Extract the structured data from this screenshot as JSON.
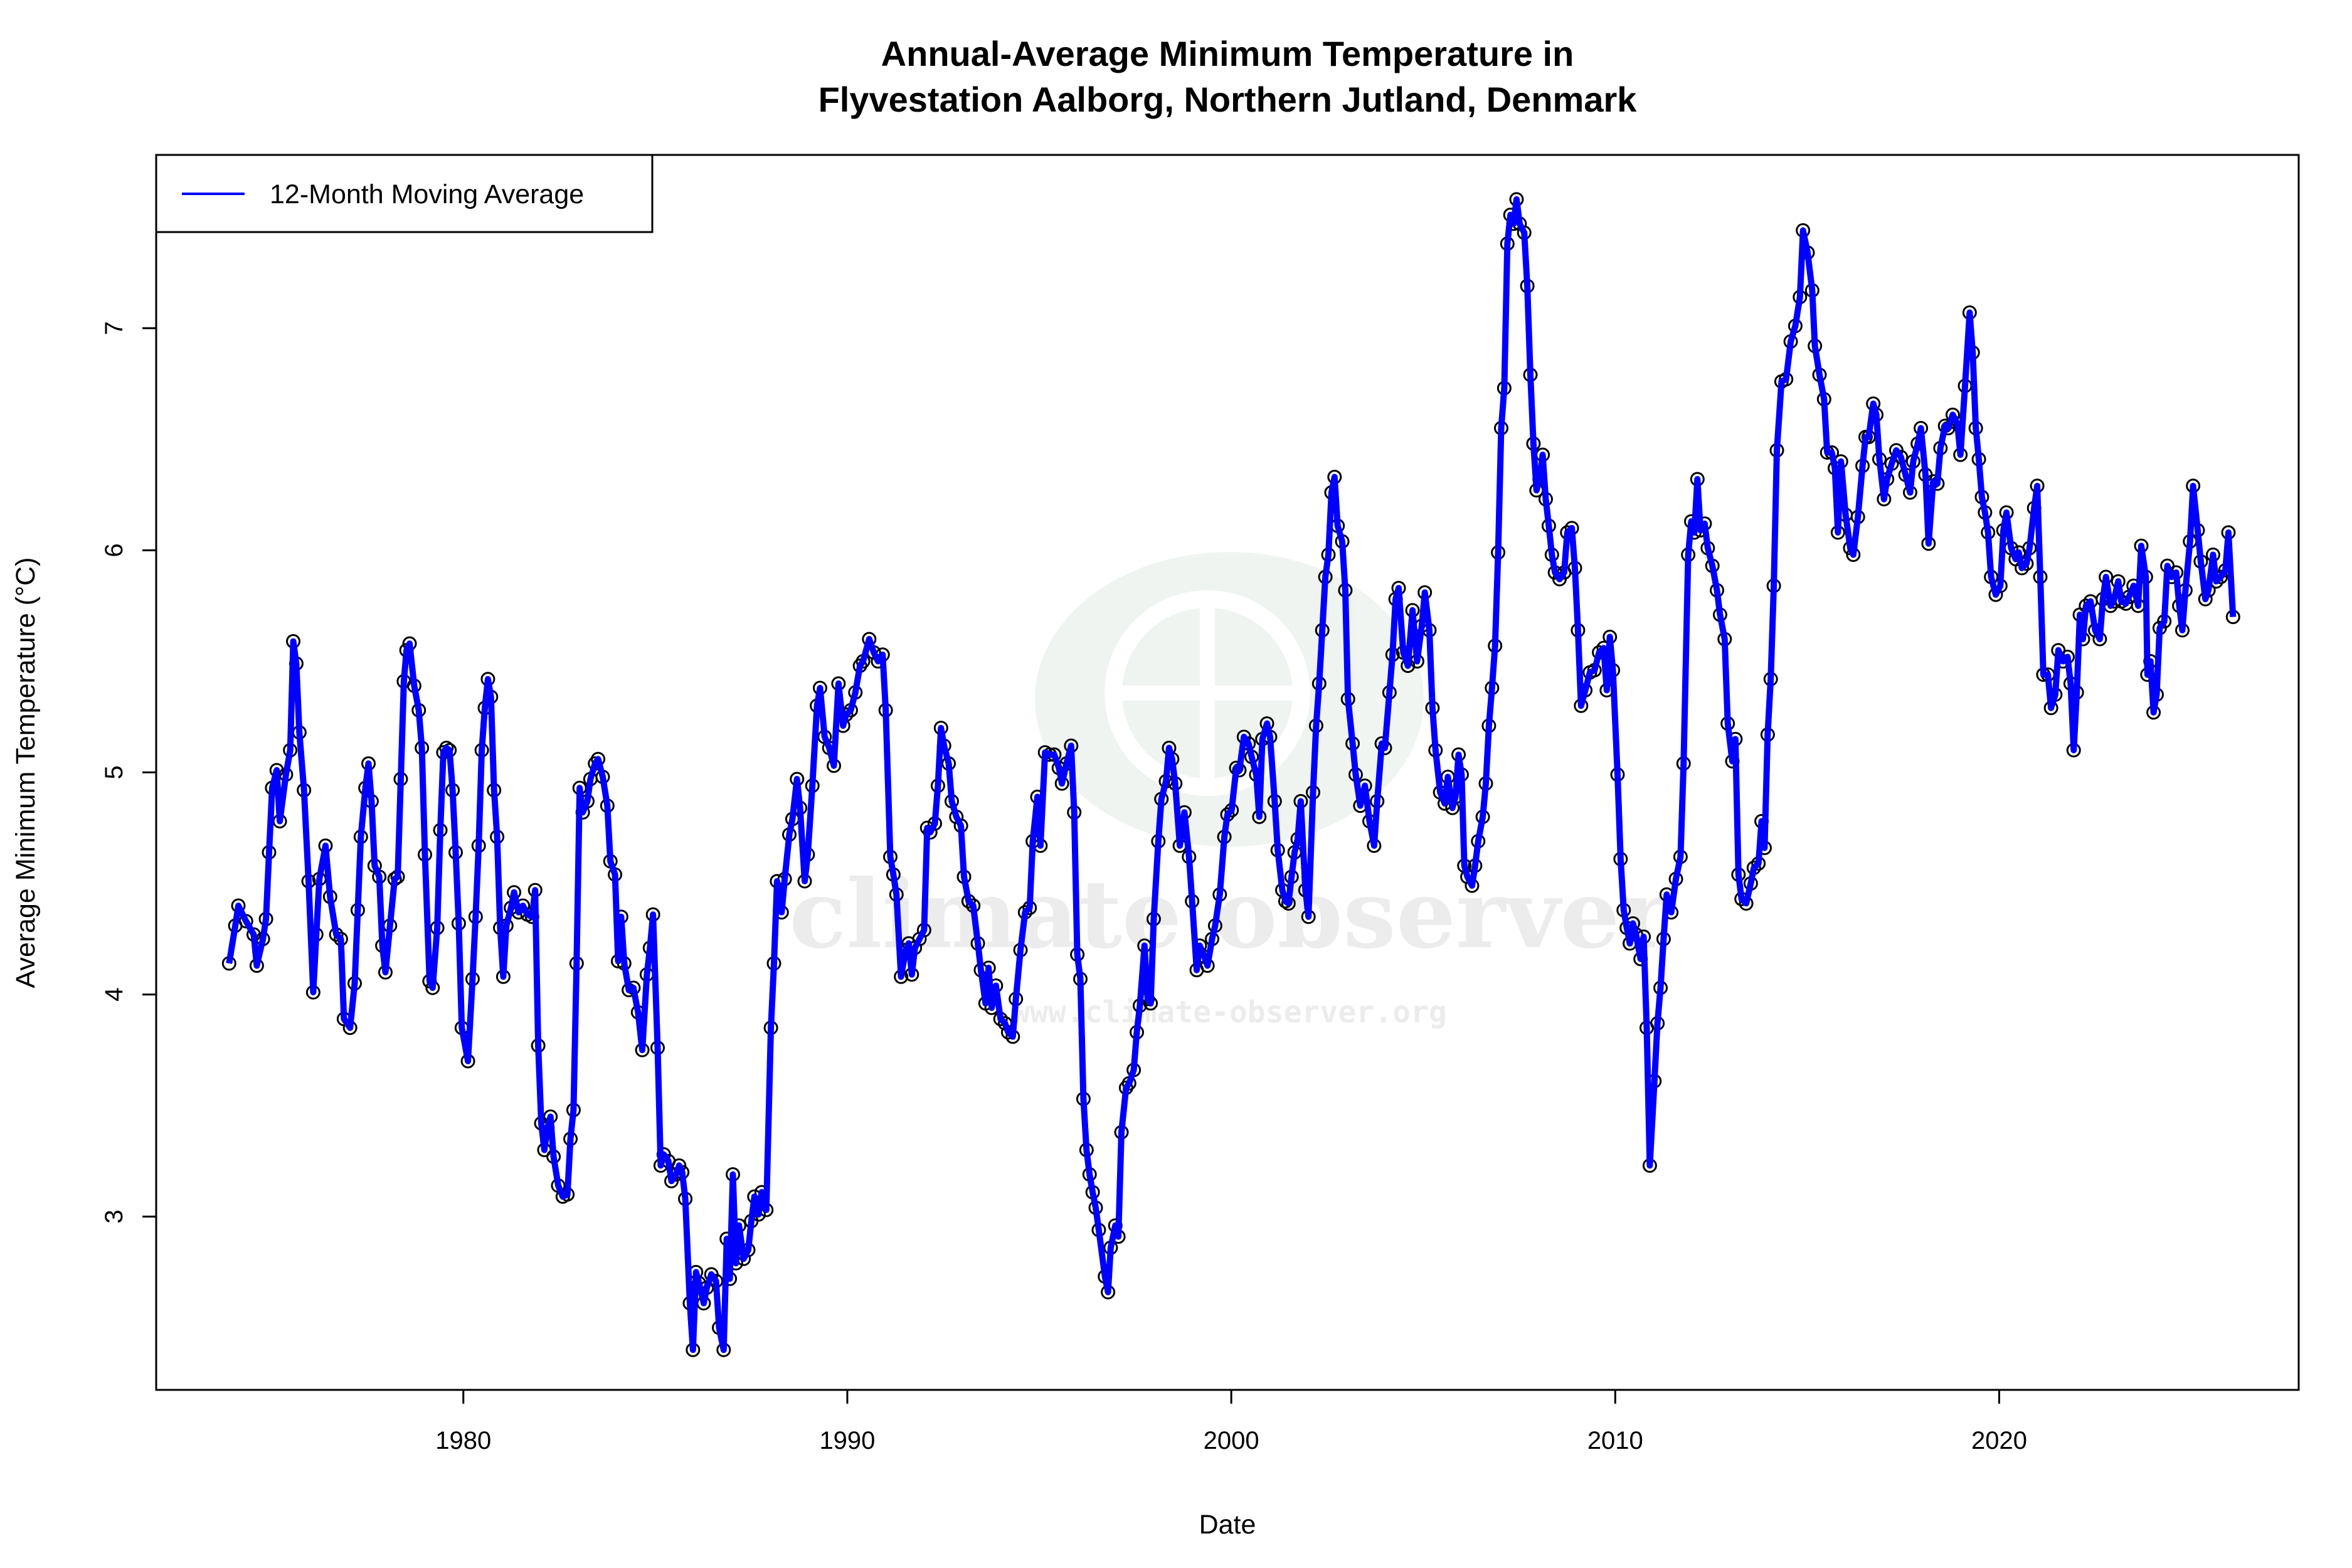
{
  "chart_data": {
    "type": "line",
    "title": "Annual-Average Minimum Temperature in",
    "subtitle": "Flyvestation Aalborg, Northern Jutland, Denmark",
    "xlabel": "Date",
    "ylabel": "Average Minimum Temperature (°C)",
    "xlim": [
      1972.0,
      2027.8
    ],
    "ylim": [
      2.22,
      7.78
    ],
    "x_ticks": [
      1980,
      1990,
      2000,
      2010,
      2020
    ],
    "y_ticks": [
      3,
      4,
      5,
      6,
      7
    ],
    "grid": false,
    "legend": {
      "position": "top-left",
      "entries": [
        "12-Month Moving Average"
      ]
    },
    "colors": {
      "line": "#0000ff",
      "points": "#000000"
    },
    "watermark": {
      "text": "climate observer",
      "url": "www.climate-observer.org"
    },
    "series": [
      {
        "name": "12-Month Moving Average",
        "x": [
          1973.9,
          1974.06,
          1974.14,
          1974.34,
          1974.54,
          1974.62,
          1974.78,
          1974.86,
          1974.94,
          1975.02,
          1975.14,
          1975.22,
          1975.38,
          1975.49,
          1975.57,
          1975.65,
          1975.73,
          1975.85,
          1975.97,
          1976.09,
          1976.17,
          1976.25,
          1976.41,
          1976.53,
          1976.69,
          1976.81,
          1976.89,
          1977.05,
          1977.17,
          1977.25,
          1977.33,
          1977.45,
          1977.53,
          1977.61,
          1977.69,
          1977.81,
          1977.89,
          1977.97,
          1978.09,
          1978.21,
          1978.29,
          1978.37,
          1978.45,
          1978.52,
          1978.6,
          1978.72,
          1978.84,
          1978.92,
          1979.0,
          1979.12,
          1979.2,
          1979.32,
          1979.4,
          1979.48,
          1979.56,
          1979.64,
          1979.72,
          1979.8,
          1979.88,
          1979.96,
          1980.12,
          1980.24,
          1980.32,
          1980.4,
          1980.48,
          1980.56,
          1980.64,
          1980.72,
          1980.8,
          1980.88,
          1980.96,
          1981.04,
          1981.12,
          1981.24,
          1981.32,
          1981.44,
          1981.55,
          1981.67,
          1981.79,
          1981.87,
          1981.95,
          1982.03,
          1982.11,
          1982.19,
          1982.27,
          1982.35,
          1982.47,
          1982.59,
          1982.71,
          1982.79,
          1982.87,
          1982.95,
          1983.03,
          1983.11,
          1983.23,
          1983.31,
          1983.43,
          1983.51,
          1983.63,
          1983.75,
          1983.83,
          1983.95,
          1984.03,
          1984.11,
          1984.19,
          1984.31,
          1984.43,
          1984.55,
          1984.66,
          1984.78,
          1984.86,
          1984.94,
          1985.06,
          1985.14,
          1985.22,
          1985.34,
          1985.42,
          1985.54,
          1985.62,
          1985.7,
          1985.78,
          1985.9,
          1985.98,
          1986.06,
          1986.14,
          1986.26,
          1986.34,
          1986.46,
          1986.58,
          1986.66,
          1986.78,
          1986.86,
          1986.94,
          1987.02,
          1987.1,
          1987.18,
          1987.3,
          1987.42,
          1987.5,
          1987.58,
          1987.69,
          1987.77,
          1987.89,
          1988.01,
          1988.09,
          1988.17,
          1988.29,
          1988.37,
          1988.49,
          1988.57,
          1988.69,
          1988.77,
          1988.89,
          1988.97,
          1989.09,
          1989.21,
          1989.29,
          1989.41,
          1989.53,
          1989.65,
          1989.77,
          1989.89,
          1989.97,
          1990.09,
          1990.21,
          1990.33,
          1990.41,
          1990.57,
          1990.69,
          1990.8,
          1990.92,
          1991.0,
          1991.12,
          1991.2,
          1991.28,
          1991.4,
          1991.52,
          1991.6,
          1991.68,
          1991.76,
          1991.88,
          1992.0,
          1992.08,
          1992.16,
          1992.28,
          1992.36,
          1992.44,
          1992.52,
          1992.64,
          1992.72,
          1992.84,
          1992.96,
          1993.04,
          1993.16,
          1993.28,
          1993.4,
          1993.48,
          1993.6,
          1993.68,
          1993.76,
          1993.87,
          1993.99,
          1994.11,
          1994.19,
          1994.31,
          1994.39,
          1994.51,
          1994.63,
          1994.75,
          1994.83,
          1994.95,
          1995.03,
          1995.15,
          1995.27,
          1995.39,
          1995.51,
          1995.59,
          1995.71,
          1995.83,
          1995.91,
          1995.99,
          1996.07,
          1996.15,
          1996.23,
          1996.31,
          1996.39,
          1996.47,
          1996.55,
          1996.71,
          1996.79,
          1996.86,
          1996.98,
          1997.06,
          1997.14,
          1997.26,
          1997.34,
          1997.46,
          1997.54,
          1997.62,
          1997.74,
          1997.82,
          1997.9,
          1997.98,
          1998.1,
          1998.18,
          1998.3,
          1998.38,
          1998.46,
          1998.54,
          1998.66,
          1998.78,
          1998.9,
          1998.98,
          1999.1,
          1999.18,
          1999.3,
          1999.38,
          1999.5,
          1999.58,
          1999.7,
          1999.82,
          1999.9,
          2000.01,
          2000.13,
          2000.21,
          2000.33,
          2000.45,
          2000.53,
          2000.65,
          2000.73,
          2000.81,
          2000.93,
          2001.01,
          2001.13,
          2001.21,
          2001.33,
          2001.41,
          2001.49,
          2001.57,
          2001.65,
          2001.73,
          2001.81,
          2001.93,
          2002.01,
          2002.13,
          2002.21,
          2002.29,
          2002.37,
          2002.45,
          2002.53,
          2002.61,
          2002.69,
          2002.77,
          2002.89,
          2002.97,
          2003.04,
          2003.16,
          2003.24,
          2003.36,
          2003.48,
          2003.6,
          2003.72,
          2003.8,
          2003.92,
          2004.0,
          2004.12,
          2004.2,
          2004.28,
          2004.36,
          2004.48,
          2004.6,
          2004.72,
          2004.84,
          2004.96,
          2005.04,
          2005.16,
          2005.24,
          2005.32,
          2005.44,
          2005.56,
          2005.64,
          2005.76,
          2005.84,
          2005.92,
          2006.0,
          2006.07,
          2006.15,
          2006.27,
          2006.35,
          2006.43,
          2006.55,
          2006.63,
          2006.71,
          2006.79,
          2006.87,
          2006.95,
          2007.03,
          2007.11,
          2007.19,
          2007.27,
          2007.35,
          2007.43,
          2007.51,
          2007.63,
          2007.71,
          2007.79,
          2007.87,
          2007.95,
          2008.03,
          2008.11,
          2008.19,
          2008.27,
          2008.35,
          2008.43,
          2008.55,
          2008.67,
          2008.75,
          2008.87,
          2008.95,
          2009.03,
          2009.11,
          2009.22,
          2009.34,
          2009.46,
          2009.58,
          2009.7,
          2009.78,
          2009.86,
          2009.94,
          2010.06,
          2010.14,
          2010.22,
          2010.3,
          2010.38,
          2010.46,
          2010.54,
          2010.66,
          2010.74,
          2010.82,
          2010.9,
          2011.02,
          2011.1,
          2011.18,
          2011.26,
          2011.34,
          2011.46,
          2011.58,
          2011.7,
          2011.78,
          2011.9,
          2011.98,
          2012.06,
          2012.14,
          2012.22,
          2012.33,
          2012.41,
          2012.53,
          2012.65,
          2012.73,
          2012.85,
          2012.93,
          2013.05,
          2013.13,
          2013.21,
          2013.29,
          2013.41,
          2013.53,
          2013.61,
          2013.73,
          2013.81,
          2013.89,
          2013.97,
          2014.05,
          2014.13,
          2014.21,
          2014.33,
          2014.45,
          2014.57,
          2014.69,
          2014.81,
          2014.89,
          2015.01,
          2015.13,
          2015.2,
          2015.32,
          2015.44,
          2015.52,
          2015.64,
          2015.72,
          2015.8,
          2015.88,
          2016.0,
          2016.12,
          2016.2,
          2016.32,
          2016.44,
          2016.52,
          2016.6,
          2016.72,
          2016.8,
          2016.88,
          2017.0,
          2017.08,
          2017.2,
          2017.32,
          2017.44,
          2017.56,
          2017.68,
          2017.76,
          2017.88,
          2017.96,
          2018.08,
          2018.16,
          2018.28,
          2018.39,
          2018.47,
          2018.59,
          2018.67,
          2018.79,
          2018.91,
          2018.99,
          2019.11,
          2019.23,
          2019.31,
          2019.39,
          2019.47,
          2019.55,
          2019.63,
          2019.71,
          2019.79,
          2019.91,
          2020.03,
          2020.11,
          2020.19,
          2020.31,
          2020.43,
          2020.51,
          2020.59,
          2020.71,
          2020.79,
          2020.91,
          2020.99,
          2021.07,
          2021.15,
          2021.27,
          2021.35,
          2021.46,
          2021.54,
          2021.66,
          2021.78,
          2021.86,
          2021.94,
          2022.02,
          2022.1,
          2022.18,
          2022.26,
          2022.38,
          2022.5,
          2022.62,
          2022.7,
          2022.78,
          2022.9,
          2022.98,
          2023.1,
          2023.18,
          2023.3,
          2023.38,
          2023.5,
          2023.62,
          2023.7,
          2023.82,
          2023.86,
          2023.94,
          2024.02,
          2024.1,
          2024.18,
          2024.3,
          2024.38,
          2024.49,
          2024.61,
          2024.69,
          2024.77,
          2024.85,
          2024.97,
          2025.05,
          2025.17,
          2025.25,
          2025.37,
          2025.45,
          2025.57,
          2025.65,
          2025.77,
          2025.89,
          2025.97,
          2026.09
        ],
        "y": [
          4.14,
          4.31,
          4.4,
          4.33,
          4.27,
          4.13,
          4.25,
          4.34,
          4.64,
          4.93,
          5.01,
          4.78,
          4.99,
          5.1,
          5.59,
          5.49,
          5.18,
          4.92,
          4.51,
          4.01,
          4.27,
          4.52,
          4.67,
          4.44,
          4.27,
          4.25,
          3.89,
          3.85,
          4.05,
          4.38,
          4.71,
          4.93,
          5.04,
          4.87,
          4.58,
          4.53,
          4.22,
          4.1,
          4.31,
          4.52,
          4.53,
          4.97,
          5.41,
          5.55,
          5.58,
          5.39,
          5.28,
          5.11,
          4.63,
          4.06,
          4.03,
          4.3,
          4.74,
          5.09,
          5.11,
          5.1,
          4.92,
          4.64,
          4.32,
          3.85,
          3.7,
          4.07,
          4.35,
          4.67,
          5.1,
          5.29,
          5.42,
          5.34,
          4.92,
          4.71,
          4.3,
          4.08,
          4.31,
          4.39,
          4.46,
          4.37,
          4.4,
          4.36,
          4.35,
          4.47,
          3.77,
          3.42,
          3.3,
          3.4,
          3.45,
          3.27,
          3.14,
          3.09,
          3.1,
          3.35,
          3.48,
          4.14,
          4.93,
          4.82,
          4.87,
          4.97,
          5.04,
          5.06,
          4.98,
          4.85,
          4.6,
          4.54,
          4.15,
          4.35,
          4.14,
          4.02,
          4.03,
          3.92,
          3.75,
          4.09,
          4.21,
          4.36,
          3.76,
          3.23,
          3.28,
          3.25,
          3.16,
          3.19,
          3.23,
          3.2,
          3.08,
          2.61,
          2.4,
          2.75,
          2.7,
          2.61,
          2.68,
          2.74,
          2.71,
          2.5,
          2.4,
          2.9,
          2.72,
          3.19,
          2.79,
          2.96,
          2.81,
          2.85,
          2.98,
          3.09,
          3.01,
          3.11,
          3.03,
          3.85,
          4.14,
          4.51,
          4.37,
          4.52,
          4.72,
          4.79,
          4.97,
          4.84,
          4.51,
          4.63,
          4.94,
          5.3,
          5.38,
          5.16,
          5.11,
          5.03,
          5.4,
          5.21,
          5.26,
          5.28,
          5.36,
          5.48,
          5.5,
          5.6,
          5.54,
          5.5,
          5.53,
          5.28,
          4.62,
          4.54,
          4.45,
          4.08,
          4.2,
          4.23,
          4.09,
          4.21,
          4.25,
          4.29,
          4.75,
          4.73,
          4.77,
          4.94,
          5.2,
          5.12,
          5.04,
          4.87,
          4.8,
          4.76,
          4.53,
          4.42,
          4.4,
          4.23,
          4.11,
          3.96,
          4.12,
          3.94,
          4.04,
          3.89,
          3.87,
          3.83,
          3.81,
          3.98,
          4.2,
          4.37,
          4.39,
          4.69,
          4.89,
          4.67,
          5.09,
          5.08,
          5.08,
          5.02,
          4.95,
          5.04,
          5.12,
          4.82,
          4.18,
          4.07,
          3.53,
          3.3,
          3.19,
          3.11,
          3.04,
          2.94,
          2.73,
          2.66,
          2.86,
          2.96,
          2.91,
          3.38,
          3.58,
          3.6,
          3.66,
          3.83,
          3.95,
          4.22,
          3.98,
          3.96,
          4.34,
          4.69,
          4.88,
          4.96,
          5.11,
          5.06,
          4.95,
          4.67,
          4.82,
          4.62,
          4.42,
          4.11,
          4.22,
          4.17,
          4.13,
          4.25,
          4.31,
          4.45,
          4.71,
          4.81,
          4.83,
          5.02,
          5.01,
          5.16,
          5.13,
          5.07,
          4.99,
          4.8,
          5.15,
          5.22,
          5.16,
          4.87,
          4.65,
          4.47,
          4.42,
          4.41,
          4.53,
          4.64,
          4.7,
          4.87,
          4.47,
          4.35,
          4.91,
          5.21,
          5.4,
          5.64,
          5.88,
          5.98,
          6.26,
          6.33,
          6.11,
          6.04,
          5.82,
          5.33,
          5.13,
          4.99,
          4.85,
          4.94,
          4.78,
          4.67,
          4.87,
          5.13,
          5.11,
          5.36,
          5.53,
          5.78,
          5.83,
          5.54,
          5.48,
          5.73,
          5.5,
          5.66,
          5.81,
          5.64,
          5.29,
          5.1,
          4.91,
          4.86,
          4.98,
          4.84,
          4.89,
          5.08,
          4.99,
          4.58,
          4.53,
          4.49,
          4.58,
          4.69,
          4.8,
          4.95,
          5.21,
          5.38,
          5.57,
          5.99,
          6.55,
          6.73,
          7.38,
          7.51,
          7.47,
          7.58,
          7.47,
          7.43,
          7.19,
          6.79,
          6.48,
          6.27,
          6.32,
          6.43,
          6.23,
          6.11,
          5.98,
          5.9,
          5.87,
          5.9,
          6.08,
          6.1,
          5.92,
          5.64,
          5.3,
          5.37,
          5.45,
          5.46,
          5.54,
          5.56,
          5.37,
          5.61,
          5.46,
          4.99,
          4.61,
          4.38,
          4.3,
          4.23,
          4.32,
          4.27,
          4.16,
          4.26,
          3.85,
          3.23,
          3.61,
          3.87,
          4.03,
          4.25,
          4.45,
          4.37,
          4.52,
          4.62,
          5.04,
          5.98,
          6.13,
          6.08,
          6.32,
          6.09,
          6.12,
          6.01,
          5.93,
          5.82,
          5.71,
          5.6,
          5.22,
          5.05,
          5.15,
          4.54,
          4.43,
          4.41,
          4.5,
          4.57,
          4.59,
          4.78,
          4.66,
          5.17,
          5.42,
          5.84,
          6.45,
          6.76,
          6.77,
          6.94,
          7.01,
          7.14,
          7.44,
          7.34,
          7.17,
          6.92,
          6.79,
          6.68,
          6.44,
          6.44,
          6.37,
          6.08,
          6.4,
          6.16,
          6.01,
          5.98,
          6.15,
          6.38,
          6.51,
          6.51,
          6.66,
          6.61,
          6.41,
          6.23,
          6.32,
          6.39,
          6.45,
          6.42,
          6.34,
          6.26,
          6.4,
          6.48,
          6.55,
          6.34,
          6.03,
          6.31,
          6.3,
          6.46,
          6.56,
          6.55,
          6.61,
          6.57,
          6.43,
          6.74,
          7.07,
          6.89,
          6.55,
          6.41,
          6.24,
          6.17,
          6.08,
          5.88,
          5.8,
          5.84,
          6.09,
          6.17,
          6.01,
          5.96,
          5.99,
          5.92,
          5.94,
          6.01,
          6.19,
          6.29,
          5.88,
          5.44,
          5.44,
          5.29,
          5.35,
          5.55,
          5.5,
          5.52,
          5.4,
          5.1,
          5.36,
          5.71,
          5.6,
          5.75,
          5.77,
          5.64,
          5.6,
          5.78,
          5.88,
          5.75,
          5.77,
          5.86,
          5.77,
          5.76,
          5.79,
          5.84,
          5.75,
          6.02,
          5.88,
          5.44,
          5.5,
          5.27,
          5.35,
          5.65,
          5.68,
          5.93,
          5.88,
          5.9,
          5.75,
          5.64,
          5.82,
          6.04,
          6.29,
          6.09,
          5.95,
          5.78,
          5.82,
          5.98,
          5.86,
          5.88,
          5.91,
          6.08,
          5.7
        ]
      }
    ]
  }
}
